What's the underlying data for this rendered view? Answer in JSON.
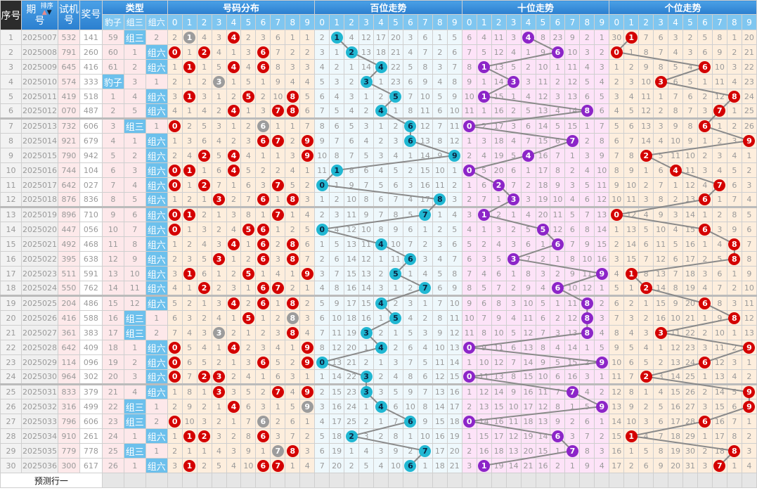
{
  "header": {
    "seq": "序号",
    "issue_a": "期",
    "issue_b": "号",
    "sort": "排序",
    "sort_up_icon": "▲",
    "sort_down_icon": "▼",
    "test_a": "试机",
    "test_b": "号",
    "prize": "奖号",
    "type": "类型",
    "types": [
      "豹子",
      "组三",
      "组六"
    ],
    "dist": "号码分布",
    "hundreds": "百位走势",
    "tens": "十位走势",
    "units": "个位走势",
    "digits": [
      "0",
      "1",
      "2",
      "3",
      "4",
      "5",
      "6",
      "7",
      "8",
      "9"
    ]
  },
  "rows": [
    {
      "seq": "1",
      "issue": "2025007",
      "test": "532",
      "prize": "141"
    },
    {
      "seq": "2",
      "issue": "2025008",
      "test": "791",
      "prize": "260"
    },
    {
      "seq": "3",
      "issue": "2025009",
      "test": "645",
      "prize": "416"
    },
    {
      "seq": "4",
      "issue": "2025010",
      "test": "574",
      "prize": "333"
    },
    {
      "seq": "5",
      "issue": "2025011",
      "test": "419",
      "prize": "518"
    },
    {
      "seq": "6",
      "issue": "2025012",
      "test": "070",
      "prize": "487"
    },
    {
      "seq": "7",
      "issue": "2025013",
      "test": "732",
      "prize": "606"
    },
    {
      "seq": "8",
      "issue": "2025014",
      "test": "921",
      "prize": "679"
    },
    {
      "seq": "9",
      "issue": "2025015",
      "test": "790",
      "prize": "942"
    },
    {
      "seq": "10",
      "issue": "2025016",
      "test": "744",
      "prize": "104"
    },
    {
      "seq": "11",
      "issue": "2025017",
      "test": "642",
      "prize": "027"
    },
    {
      "seq": "12",
      "issue": "2025018",
      "test": "876",
      "prize": "836"
    },
    {
      "seq": "13",
      "issue": "2025019",
      "test": "896",
      "prize": "710"
    },
    {
      "seq": "14",
      "issue": "2025020",
      "test": "447",
      "prize": "056"
    },
    {
      "seq": "15",
      "issue": "2025021",
      "test": "492",
      "prize": "468"
    },
    {
      "seq": "16",
      "issue": "2025022",
      "test": "395",
      "prize": "638"
    },
    {
      "seq": "17",
      "issue": "2025023",
      "test": "511",
      "prize": "591"
    },
    {
      "seq": "18",
      "issue": "2025024",
      "test": "550",
      "prize": "762"
    },
    {
      "seq": "19",
      "issue": "2025025",
      "test": "204",
      "prize": "486"
    },
    {
      "seq": "20",
      "issue": "2025026",
      "test": "416",
      "prize": "588"
    },
    {
      "seq": "21",
      "issue": "2025027",
      "test": "361",
      "prize": "383"
    },
    {
      "seq": "22",
      "issue": "2025028",
      "test": "642",
      "prize": "409"
    },
    {
      "seq": "23",
      "issue": "2025029",
      "test": "114",
      "prize": "096"
    },
    {
      "seq": "24",
      "issue": "2025030",
      "test": "964",
      "prize": "302"
    },
    {
      "seq": "25",
      "issue": "2025031",
      "test": "833",
      "prize": "379"
    },
    {
      "seq": "26",
      "issue": "2025032",
      "test": "316",
      "prize": "499"
    },
    {
      "seq": "27",
      "issue": "2025033",
      "test": "796",
      "prize": "606"
    },
    {
      "seq": "28",
      "issue": "2025034",
      "test": "910",
      "prize": "261"
    },
    {
      "seq": "29",
      "issue": "2025035",
      "test": "779",
      "prize": "778"
    },
    {
      "seq": "30",
      "issue": "2025036",
      "test": "300",
      "prize": "617"
    }
  ],
  "first_row_omissions": {
    "type": [
      59,
      null,
      2
    ],
    "dist": [
      2,
      null,
      4,
      3,
      null,
      2,
      3,
      6,
      1,
      1
    ],
    "hundreds": [
      2,
      null,
      4,
      12,
      17,
      20,
      3,
      6,
      1,
      5
    ],
    "tens": [
      6,
      4,
      11,
      3,
      null,
      8,
      23,
      9,
      2,
      1
    ],
    "units": [
      30,
      null,
      7,
      6,
      3,
      2,
      5,
      8,
      1,
      20
    ]
  },
  "footer": {
    "predict_label": "预测行一"
  },
  "colors": {
    "dist_single": "#d40000",
    "dist_repeat": "#9c9c9c",
    "hundreds": "#20b7d2",
    "tens": "#8c25c8",
    "units": "#d40000",
    "trend_line": "#8a8a8a",
    "header": "#2b7fcf",
    "type_hit": "#6cc0ec"
  }
}
